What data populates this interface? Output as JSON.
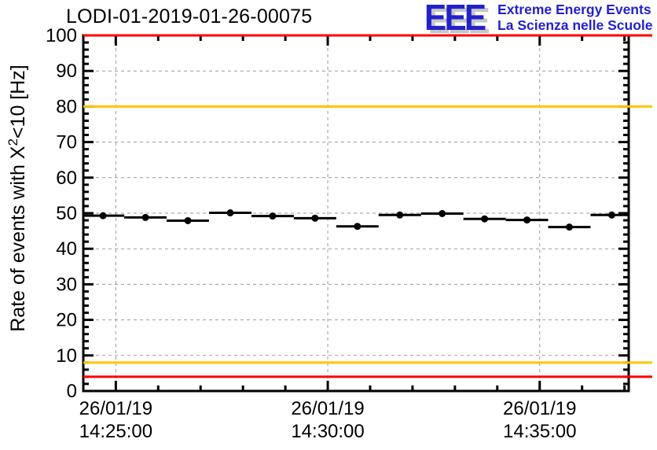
{
  "header": {
    "title": "LODI-01-2019-01-26-00075",
    "logo": {
      "acronym": "EEE",
      "line1": "Extreme Energy Events",
      "line2": "La Scienza nelle Scuole",
      "color": "#2222cc",
      "shadow_color": "#c7c7c7"
    }
  },
  "chart_data": {
    "type": "scatter",
    "title": "LODI-01-2019-01-26-00075",
    "ylabel": {
      "pre": "Rate of events with X",
      "sup": "2",
      "post": "<10 [Hz]"
    },
    "ylim": [
      0,
      100
    ],
    "y_major_step": 10,
    "y_minor_step": 2,
    "y_tick_labels": [
      "0",
      "10",
      "20",
      "30",
      "40",
      "50",
      "60",
      "70",
      "80",
      "90",
      "100"
    ],
    "grid": true,
    "grid_color": "#999999",
    "axis_color": "#000000",
    "x_axis": {
      "date_label": "26/01/19",
      "major_ticks": [
        "14:25:00",
        "14:30:00",
        "14:35:00"
      ],
      "major_step_seconds": 300,
      "minor_step_seconds": 60,
      "window_seconds": [
        -46,
        726
      ]
    },
    "thresholds": [
      {
        "name": "alarm-high",
        "value": 100,
        "color": "#ff0000"
      },
      {
        "name": "warning-high",
        "value": 80,
        "color": "#ffc400"
      },
      {
        "name": "warning-low",
        "value": 8,
        "color": "#ffc400"
      },
      {
        "name": "alarm-low",
        "value": 4,
        "color": "#ff0000"
      }
    ],
    "series": [
      {
        "name": "event-rate",
        "marker": "filled-circle",
        "color": "#000000",
        "bin_halfwidth_seconds": 30,
        "points": [
          {
            "time": "14:24:42",
            "rate": 49.3
          },
          {
            "time": "14:25:42",
            "rate": 48.8
          },
          {
            "time": "14:26:42",
            "rate": 47.9
          },
          {
            "time": "14:27:42",
            "rate": 50.1
          },
          {
            "time": "14:28:42",
            "rate": 49.2
          },
          {
            "time": "14:29:42",
            "rate": 48.6
          },
          {
            "time": "14:30:42",
            "rate": 46.3
          },
          {
            "time": "14:31:42",
            "rate": 49.5
          },
          {
            "time": "14:32:42",
            "rate": 49.9
          },
          {
            "time": "14:33:42",
            "rate": 48.4
          },
          {
            "time": "14:34:42",
            "rate": 48.1
          },
          {
            "time": "14:35:42",
            "rate": 46.1
          },
          {
            "time": "14:36:42",
            "rate": 49.5
          }
        ]
      }
    ]
  }
}
